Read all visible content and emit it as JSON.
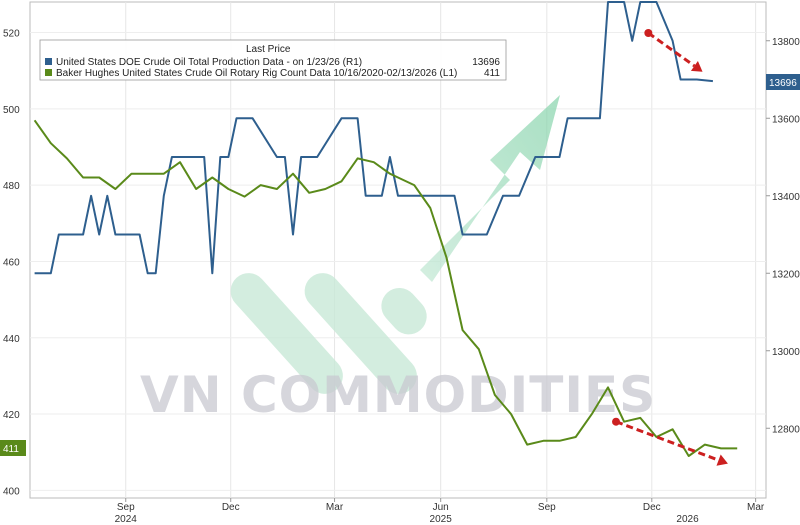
{
  "chart_data": {
    "type": "line",
    "legend": {
      "title": "Last Price",
      "placement": "top-left",
      "entries": [
        {
          "name": "United States DOE Crude Oil Total Production Data -  on 1/23/26  (R1)",
          "last": "13696",
          "color": "#2e5f8e"
        },
        {
          "name": "Baker Hughes United States Crude Oil Rotary Rig Count Data 10/16/2020-02/13/2026  (L1)",
          "last": "411",
          "color": "#5a8a1a"
        }
      ]
    },
    "x_axis": {
      "months": [
        "Sep",
        "Dec",
        "Mar",
        "Jun",
        "Sep",
        "Dec",
        "Mar"
      ],
      "month_dates": [
        "2024-09-01",
        "2024-12-01",
        "2025-03-01",
        "2025-06-01",
        "2025-09-01",
        "2025-12-01",
        "2026-03-01"
      ],
      "years": [
        "2024",
        "2025",
        "2026"
      ],
      "year_dates": [
        "2024-09-01",
        "2025-06-01",
        "2026-01-01"
      ],
      "range": [
        "2024-06-10",
        "2026-03-10"
      ],
      "grid": true
    },
    "y_left": {
      "ticks": [
        "400",
        "420",
        "440",
        "460",
        "480",
        "500",
        "520"
      ],
      "range": [
        398,
        528
      ]
    },
    "y_right": {
      "ticks": [
        "12800",
        "13000",
        "13200",
        "13400",
        "13600",
        "13800"
      ],
      "range": [
        12620,
        13900
      ]
    },
    "last_value_badges": {
      "left": "411",
      "right": "13696"
    },
    "series": [
      {
        "name": "United States DOE Crude Oil Total Production Data -  on 1/23/26  (R1)",
        "axis": "right",
        "color": "#2e5f8e",
        "points": [
          [
            "2024-06-14",
            13200
          ],
          [
            "2024-06-28",
            13200
          ],
          [
            "2024-07-05",
            13300
          ],
          [
            "2024-07-26",
            13300
          ],
          [
            "2024-08-02",
            13400
          ],
          [
            "2024-08-09",
            13300
          ],
          [
            "2024-08-16",
            13400
          ],
          [
            "2024-08-23",
            13300
          ],
          [
            "2024-09-13",
            13300
          ],
          [
            "2024-09-20",
            13200
          ],
          [
            "2024-09-27",
            13200
          ],
          [
            "2024-10-04",
            13400
          ],
          [
            "2024-10-11",
            13500
          ],
          [
            "2024-11-08",
            13500
          ],
          [
            "2024-11-15",
            13200
          ],
          [
            "2024-11-22",
            13500
          ],
          [
            "2024-11-29",
            13500
          ],
          [
            "2024-12-06",
            13600
          ],
          [
            "2024-12-20",
            13600
          ],
          [
            "2025-01-10",
            13500
          ],
          [
            "2025-01-17",
            13500
          ],
          [
            "2025-01-24",
            13300
          ],
          [
            "2025-01-31",
            13500
          ],
          [
            "2025-02-14",
            13500
          ],
          [
            "2025-03-07",
            13600
          ],
          [
            "2025-03-21",
            13600
          ],
          [
            "2025-03-28",
            13400
          ],
          [
            "2025-04-11",
            13400
          ],
          [
            "2025-04-18",
            13500
          ],
          [
            "2025-04-25",
            13400
          ],
          [
            "2025-05-09",
            13400
          ],
          [
            "2025-05-23",
            13400
          ],
          [
            "2025-06-06",
            13400
          ],
          [
            "2025-06-13",
            13400
          ],
          [
            "2025-06-20",
            13300
          ],
          [
            "2025-06-27",
            13300
          ],
          [
            "2025-07-11",
            13300
          ],
          [
            "2025-07-25",
            13400
          ],
          [
            "2025-08-08",
            13400
          ],
          [
            "2025-08-22",
            13500
          ],
          [
            "2025-08-29",
            13500
          ],
          [
            "2025-09-12",
            13500
          ],
          [
            "2025-09-19",
            13600
          ],
          [
            "2025-10-03",
            13600
          ],
          [
            "2025-10-17",
            13600
          ],
          [
            "2025-10-24",
            13900
          ],
          [
            "2025-11-07",
            13900
          ],
          [
            "2025-11-14",
            13800
          ],
          [
            "2025-11-21",
            13900
          ],
          [
            "2025-12-05",
            13900
          ],
          [
            "2025-12-19",
            13800
          ],
          [
            "2025-12-26",
            13700
          ],
          [
            "2026-01-09",
            13700
          ],
          [
            "2026-01-23",
            13696
          ]
        ]
      },
      {
        "name": "Baker Hughes United States Crude Oil Rotary Rig Count Data 10/16/2020-02/13/2026  (L1)",
        "axis": "left",
        "color": "#5a8a1a",
        "points": [
          [
            "2024-06-14",
            497
          ],
          [
            "2024-06-28",
            491
          ],
          [
            "2024-07-12",
            487
          ],
          [
            "2024-07-26",
            482
          ],
          [
            "2024-08-09",
            482
          ],
          [
            "2024-08-23",
            479
          ],
          [
            "2024-09-06",
            483
          ],
          [
            "2024-09-20",
            483
          ],
          [
            "2024-10-04",
            483
          ],
          [
            "2024-10-18",
            486
          ],
          [
            "2024-11-01",
            479
          ],
          [
            "2024-11-15",
            482
          ],
          [
            "2024-11-29",
            479
          ],
          [
            "2024-12-13",
            477
          ],
          [
            "2024-12-27",
            480
          ],
          [
            "2025-01-10",
            479
          ],
          [
            "2025-01-24",
            483
          ],
          [
            "2025-02-07",
            478
          ],
          [
            "2025-02-21",
            479
          ],
          [
            "2025-03-07",
            481
          ],
          [
            "2025-03-21",
            487
          ],
          [
            "2025-04-04",
            486
          ],
          [
            "2025-04-18",
            483
          ],
          [
            "2025-04-25",
            482
          ],
          [
            "2025-05-09",
            480
          ],
          [
            "2025-05-23",
            474
          ],
          [
            "2025-06-06",
            461
          ],
          [
            "2025-06-20",
            442
          ],
          [
            "2025-07-04",
            437
          ],
          [
            "2025-07-18",
            425
          ],
          [
            "2025-08-01",
            420
          ],
          [
            "2025-08-15",
            412
          ],
          [
            "2025-08-29",
            413
          ],
          [
            "2025-09-12",
            413
          ],
          [
            "2025-09-26",
            414
          ],
          [
            "2025-10-10",
            420
          ],
          [
            "2025-10-24",
            427
          ],
          [
            "2025-11-07",
            418
          ],
          [
            "2025-11-21",
            419
          ],
          [
            "2025-12-05",
            414
          ],
          [
            "2025-12-19",
            416
          ],
          [
            "2026-01-02",
            409
          ],
          [
            "2026-01-16",
            412
          ],
          [
            "2026-01-30",
            411
          ],
          [
            "2026-02-13",
            411
          ]
        ]
      }
    ],
    "annotations": [
      {
        "type": "down-arrow",
        "axis": "right",
        "from": [
          "2025-11-28",
          13820
        ],
        "to": [
          "2026-01-14",
          13720
        ],
        "color": "#cc2020"
      },
      {
        "type": "down-arrow",
        "axis": "left",
        "from": [
          "2025-10-31",
          418
        ],
        "to": [
          "2026-02-05",
          407
        ],
        "color": "#cc2020"
      }
    ],
    "watermark": {
      "text": "VN COMMODITIES"
    }
  }
}
